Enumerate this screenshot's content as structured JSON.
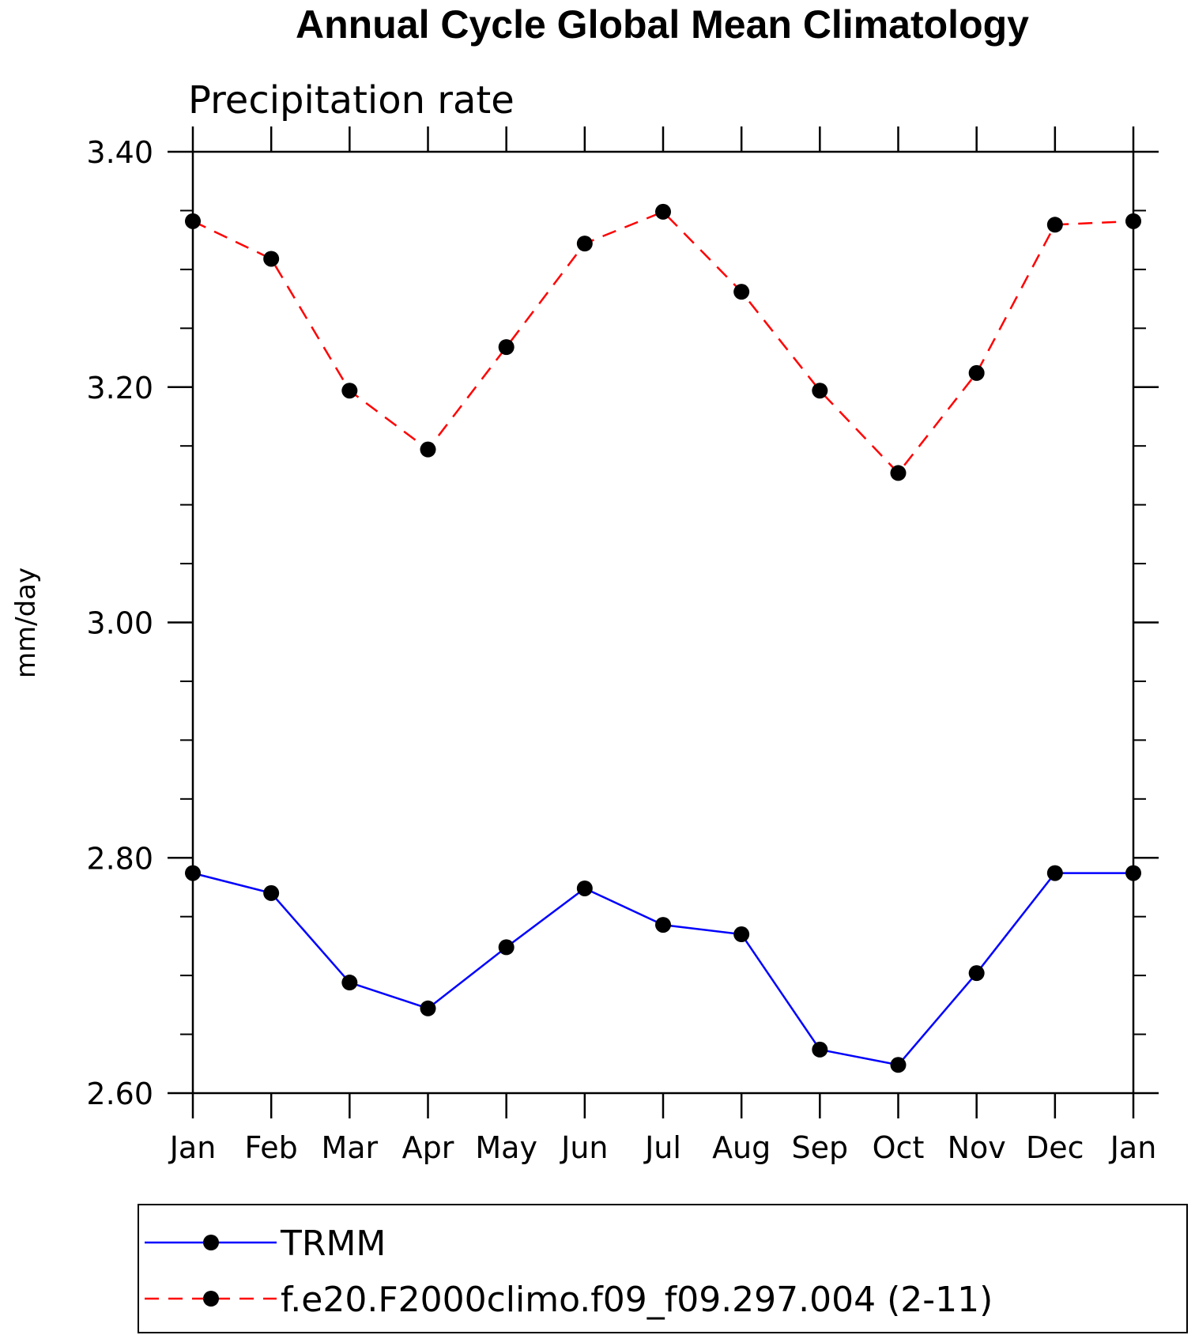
{
  "chart_data": {
    "type": "line",
    "title": "Annual Cycle Global Mean Climatology",
    "subtitle": "Precipitation rate",
    "xlabel": "",
    "ylabel": "mm/day",
    "categories": [
      "Jan",
      "Feb",
      "Mar",
      "Apr",
      "May",
      "Jun",
      "Jul",
      "Aug",
      "Sep",
      "Oct",
      "Nov",
      "Dec",
      "Jan"
    ],
    "ylim": [
      2.6,
      3.4
    ],
    "yticks": [
      "3.40",
      "3.20",
      "3.00",
      "2.80",
      "2.60"
    ],
    "ytick_values": [
      3.4,
      3.2,
      3.0,
      2.8,
      2.6
    ],
    "grid": false,
    "legend_position": "bottom",
    "series": [
      {
        "name": "TRMM",
        "color": "#0000ff",
        "dash": "solid",
        "marker": "filled-circle",
        "values": [
          2.787,
          2.77,
          2.694,
          2.672,
          2.724,
          2.774,
          2.743,
          2.735,
          2.637,
          2.624,
          2.702,
          2.787,
          2.787
        ]
      },
      {
        "name": "f.e20.F2000climo.f09_f09.297.004 (2-11)",
        "color": "#ff0000",
        "dash": "dashed",
        "marker": "filled-circle",
        "values": [
          3.341,
          3.309,
          3.197,
          3.147,
          3.234,
          3.322,
          3.349,
          3.281,
          3.197,
          3.127,
          3.212,
          3.338,
          3.341
        ]
      }
    ]
  }
}
